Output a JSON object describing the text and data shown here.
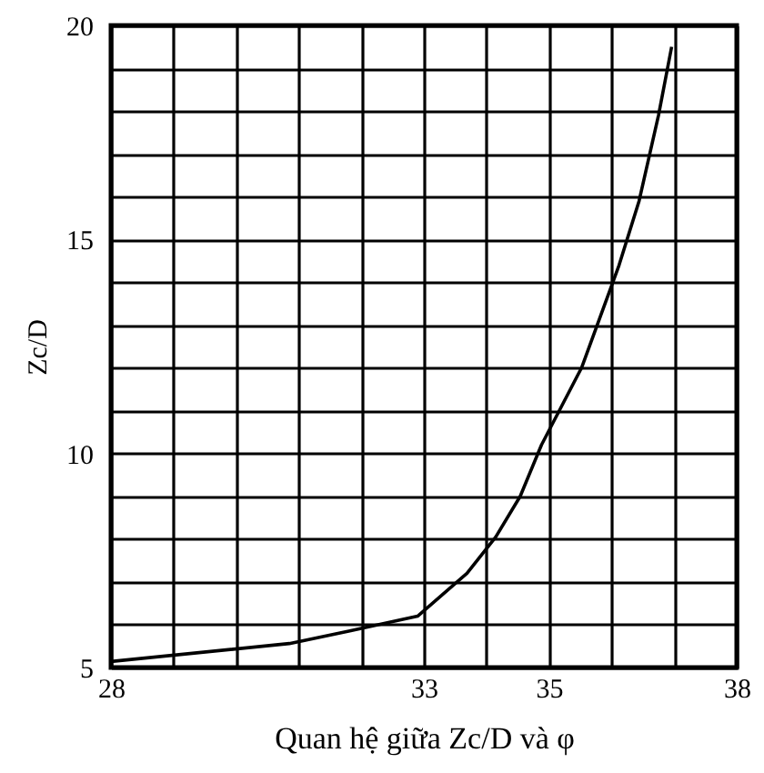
{
  "chart_data": {
    "type": "line",
    "xlabel": "Quan hệ giữa Zc/D và φ",
    "ylabel": "Zc/D",
    "x": [
      28,
      30.85,
      31.8,
      32.9,
      33.69,
      34.15,
      34.54,
      34.88,
      35.52,
      36.12,
      36.44,
      36.75,
      36.96
    ],
    "series": [
      {
        "color": "#000000",
        "values": [
          5.14,
          5.56,
          5.85,
          6.2,
          7.2,
          8.05,
          9.0,
          10.2,
          12.0,
          14.4,
          15.9,
          17.9,
          19.5
        ]
      }
    ],
    "xlim": [
      28,
      38
    ],
    "xticks": [
      28,
      {
        "value": 29,
        "label": null
      },
      {
        "value": 30,
        "label": null
      },
      {
        "value": 31,
        "label": null
      },
      {
        "value": 32,
        "label": null
      },
      33,
      {
        "value": 34,
        "label": null
      },
      35,
      {
        "value": 36,
        "label": null
      },
      {
        "value": 37,
        "label": null
      },
      38
    ],
    "ylim": [
      5,
      20
    ],
    "yticks": [
      5,
      {
        "value": 6,
        "label": null
      },
      {
        "value": 7,
        "label": null
      },
      {
        "value": 8,
        "label": null
      },
      {
        "value": 9,
        "label": null
      },
      10,
      {
        "value": 11,
        "label": null
      },
      {
        "value": 12,
        "label": null
      },
      {
        "value": 13,
        "label": null
      },
      {
        "value": 14,
        "label": null
      },
      15,
      {
        "value": 16,
        "label": null
      },
      {
        "value": 17,
        "label": null
      },
      {
        "value": 18,
        "label": null
      },
      {
        "value": 19,
        "label": null
      },
      20
    ],
    "grid": true,
    "marker": "none",
    "line_style": "solid"
  }
}
